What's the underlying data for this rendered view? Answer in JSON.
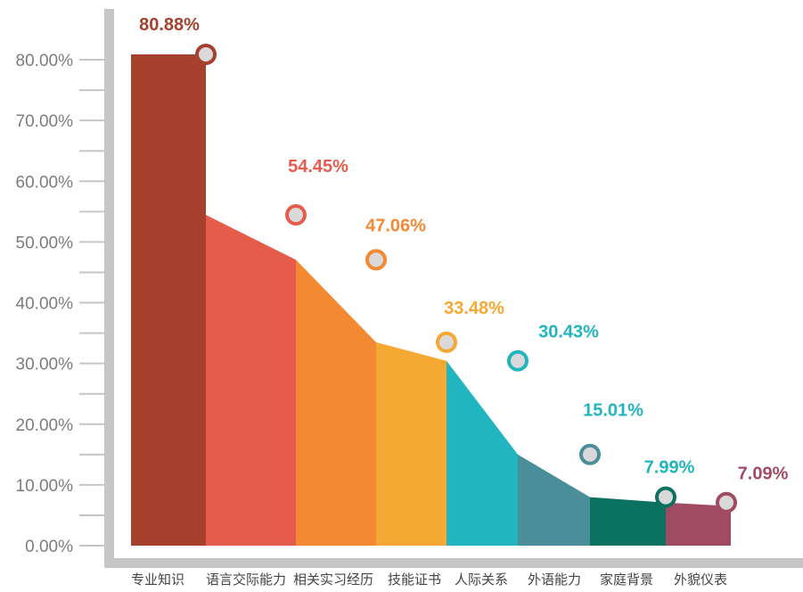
{
  "chart_data": {
    "type": "bar",
    "title": "",
    "xlabel": "",
    "ylabel": "",
    "ylim": [
      0,
      80
    ],
    "y_ticks": [
      "0.00%",
      "10.00%",
      "20.00%",
      "30.00%",
      "40.00%",
      "50.00%",
      "60.00%",
      "70.00%",
      "80.00%"
    ],
    "categories": [
      "专业知识",
      "语言交际能力",
      "相关实习经历",
      "技能证书",
      "人际关系",
      "外语能力",
      "家庭背景",
      "外貌仪表"
    ],
    "values": [
      80.88,
      54.45,
      47.06,
      33.48,
      30.43,
      15.01,
      7.99,
      7.09
    ],
    "value_labels": [
      "80.88%",
      "54.45%",
      "47.06%",
      "33.48%",
      "30.43%",
      "15.01%",
      "7.99%",
      "7.09%"
    ],
    "colors": {
      "bars": [
        "#a5412d",
        "#e55c4c",
        "#f38a33",
        "#f6a834",
        "#21b6bf",
        "#4a8e9a",
        "#0b7160",
        "#a14b63"
      ],
      "labels": [
        "#a5412d",
        "#e55c4c",
        "#f38a33",
        "#f6a834",
        "#21b6bf",
        "#21b6bf",
        "#21b6bf",
        "#a14b63"
      ],
      "axis": "#c6c6c6",
      "marker_fill": "#d9d9d9"
    },
    "grid": false,
    "legend": "none"
  }
}
